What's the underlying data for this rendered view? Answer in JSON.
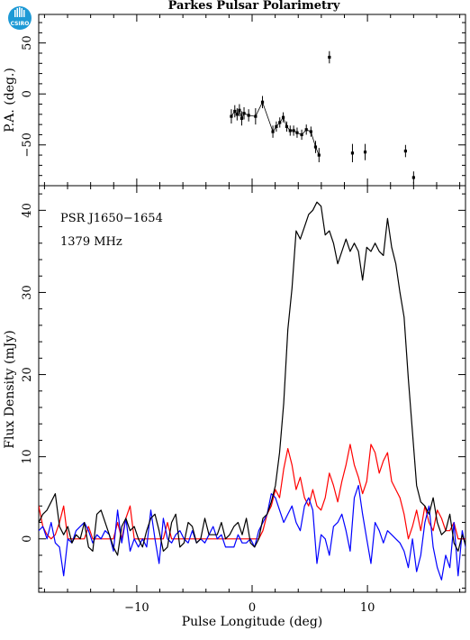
{
  "title": "Parkes Pulsar Polarimetry",
  "logo_text": "CSIRO",
  "chart_data": [
    {
      "type": "scatter",
      "name": "position-angle",
      "ylabel": "P.A. (deg.)",
      "xlim": [
        -18.5,
        18.5
      ],
      "ylim": [
        -90,
        78
      ],
      "yticks": [
        -50,
        0,
        50
      ],
      "points": [
        {
          "x": -1.8,
          "y": -22,
          "err": 7
        },
        {
          "x": -1.5,
          "y": -17,
          "err": 6
        },
        {
          "x": -1.3,
          "y": -20,
          "err": 6
        },
        {
          "x": -1.1,
          "y": -16,
          "err": 6
        },
        {
          "x": -0.9,
          "y": -24,
          "err": 7
        },
        {
          "x": -0.7,
          "y": -19,
          "err": 6
        },
        {
          "x": -0.3,
          "y": -21,
          "err": 6
        },
        {
          "x": 0.3,
          "y": -22,
          "err": 8
        },
        {
          "x": 0.9,
          "y": -8,
          "err": 6
        },
        {
          "x": 1.8,
          "y": -37,
          "err": 6
        },
        {
          "x": 2.1,
          "y": -32,
          "err": 5
        },
        {
          "x": 2.4,
          "y": -28,
          "err": 5
        },
        {
          "x": 2.7,
          "y": -23,
          "err": 5
        },
        {
          "x": 3.0,
          "y": -32,
          "err": 5
        },
        {
          "x": 3.3,
          "y": -36,
          "err": 5
        },
        {
          "x": 3.6,
          "y": -36,
          "err": 5
        },
        {
          "x": 3.9,
          "y": -38,
          "err": 5
        },
        {
          "x": 4.3,
          "y": -40,
          "err": 5
        },
        {
          "x": 4.7,
          "y": -35,
          "err": 5
        },
        {
          "x": 5.1,
          "y": -37,
          "err": 5
        },
        {
          "x": 5.5,
          "y": -52,
          "err": 6
        },
        {
          "x": 5.8,
          "y": -60,
          "err": 7
        },
        {
          "x": 6.7,
          "y": 36,
          "err": 6
        },
        {
          "x": 8.7,
          "y": -58,
          "err": 9
        },
        {
          "x": 9.8,
          "y": -57,
          "err": 8
        },
        {
          "x": 13.3,
          "y": -56,
          "err": 6
        },
        {
          "x": 14.0,
          "y": -82,
          "err": 6
        }
      ]
    },
    {
      "type": "line",
      "name": "flux-profile",
      "xlabel": "Pulse Longitude (deg)",
      "ylabel": "Flux Density (mJy)",
      "xlim": [
        -18.5,
        18.5
      ],
      "ylim": [
        -6.5,
        43
      ],
      "xticks": [
        -10,
        0,
        10
      ],
      "yticks": [
        0,
        10,
        20,
        30,
        40
      ],
      "annotations": [
        "PSR J1650−1654",
        "1379 MHz"
      ],
      "x_start": -18.5,
      "x_step": 0.36,
      "series": [
        {
          "color": "#000000",
          "values": [
            2,
            3,
            3.5,
            4.5,
            5.5,
            1.5,
            0.5,
            1.5,
            -0.5,
            0.5,
            0,
            2,
            -1,
            -1.5,
            3,
            3.5,
            2,
            0.5,
            -1,
            -2,
            1.5,
            2.5,
            1,
            1.5,
            0,
            -1,
            1,
            2.5,
            3,
            1,
            -1.5,
            -1,
            2,
            3,
            -1,
            -0.5,
            2,
            1.5,
            -0.5,
            0,
            2.5,
            0.5,
            0.5,
            0.5,
            2,
            0,
            0.5,
            1.5,
            2,
            0.5,
            2.5,
            -0.5,
            -1,
            0,
            2.5,
            3,
            4.5,
            6.5,
            10.5,
            16.5,
            25.5,
            30.5,
            37.5,
            36.5,
            38,
            39.5,
            40,
            41,
            40.5,
            37,
            37.5,
            36,
            33.5,
            35,
            36.5,
            35,
            36,
            35,
            31.5,
            35.5,
            35,
            36,
            35,
            34.5,
            39,
            35.5,
            33.5,
            30,
            27,
            19.5,
            13,
            6.5,
            4.5,
            4,
            3,
            5,
            2,
            0.5,
            1,
            3,
            -0.5,
            -1.5,
            0.5,
            -1,
            1.5,
            -2,
            -1,
            -0.5,
            -3,
            1.5,
            -1.5,
            -0.5,
            -3.5,
            -5.5,
            -3,
            -2,
            -1.5,
            -2.5,
            -2.5
          ]
        },
        {
          "color": "#ff0000",
          "values": [
            4,
            1.5,
            0.5,
            0,
            0.5,
            2,
            4,
            0,
            0,
            0,
            0,
            0,
            1.5,
            0,
            0,
            0,
            0,
            0,
            0,
            2,
            0,
            2.5,
            4,
            0,
            0,
            0,
            0,
            0,
            0,
            0,
            0,
            2,
            0,
            0,
            0,
            0,
            0,
            0,
            0,
            0,
            0,
            0,
            0,
            0,
            0,
            0,
            0,
            0,
            0,
            0,
            0,
            0,
            0,
            0,
            1,
            3,
            4,
            6,
            5,
            8.5,
            11,
            9,
            6,
            7.5,
            5,
            4,
            6,
            4,
            3.5,
            5,
            8,
            6.5,
            4.5,
            7,
            9,
            11.5,
            9,
            7.5,
            5.5,
            7,
            11.5,
            10.5,
            8,
            9.5,
            10.5,
            7,
            6,
            5,
            3,
            0,
            1.5,
            3.5,
            1,
            4,
            2,
            1,
            3.5,
            2.5,
            1,
            1,
            2,
            0,
            0,
            0,
            0.5,
            4,
            6.5,
            3.5,
            1,
            0,
            0,
            0,
            0,
            0,
            0,
            0,
            0,
            0,
            0,
            4
          ]
        },
        {
          "color": "#0000ff",
          "values": [
            1,
            1.5,
            0,
            2,
            -0.5,
            -1,
            -4.5,
            0,
            -0.5,
            1,
            1.5,
            2,
            1,
            -0.5,
            0.5,
            0,
            1,
            0.5,
            -1.5,
            3.5,
            -0.5,
            2.5,
            -1.5,
            0,
            -1,
            0,
            -1,
            3.5,
            0,
            -3,
            2.5,
            0,
            -0.5,
            0.5,
            1,
            0,
            -0.5,
            1,
            -0.5,
            0,
            -0.5,
            0.5,
            1.5,
            0,
            0.5,
            -1,
            -1,
            -1,
            0.5,
            -0.5,
            -0.5,
            0,
            -1,
            1,
            2,
            3,
            5.5,
            5,
            3.5,
            2,
            3,
            4,
            2,
            1,
            4,
            5,
            3.5,
            -3,
            0.5,
            0,
            -2,
            1.5,
            2,
            3,
            1,
            -1.5,
            5,
            6.5,
            3,
            0,
            -3,
            2,
            1,
            -0.5,
            1,
            0.5,
            0,
            -0.5,
            -1.5,
            -3.5,
            0,
            -4,
            -2,
            2,
            4,
            -1,
            -3.5,
            -5,
            -2,
            -3.5,
            2,
            -4.5,
            1,
            -1.5,
            -1.5,
            1,
            0,
            -1.5,
            -4.5,
            0,
            -2,
            -3,
            0,
            1,
            -1,
            0,
            3.5,
            3,
            -1
          ]
        }
      ]
    }
  ]
}
